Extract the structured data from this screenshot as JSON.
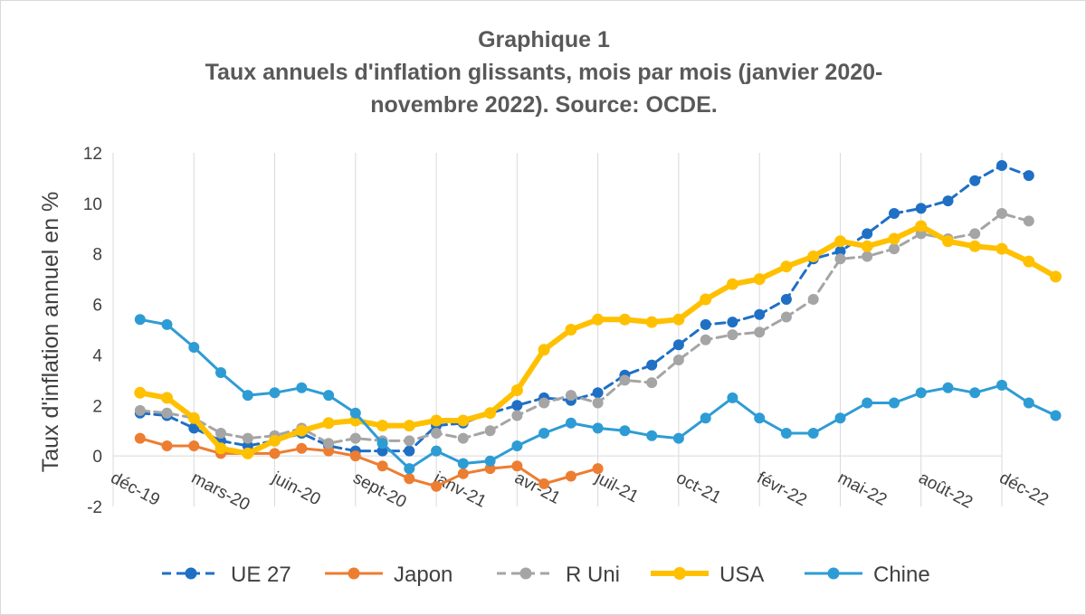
{
  "chart_data": {
    "type": "line",
    "title": [
      "Graphique 1",
      "Taux annuels d'inflation glissants, mois par mois (janvier 2020-",
      "novembre 2022). Source: OCDE."
    ],
    "xlabel": "",
    "ylabel": "Taux d'inflation annuel en %",
    "ylim": [
      -2,
      12
    ],
    "yticks": [
      -2,
      0,
      2,
      4,
      6,
      8,
      10,
      12
    ],
    "x_tick_labels": [
      "déc-19",
      "mars-20",
      "juin-20",
      "sept-20",
      "janv-21",
      "avr-21",
      "juil-21",
      "oct-21",
      "févr-22",
      "mai-22",
      "août-22",
      "déc-22"
    ],
    "x_tick_months": [
      0,
      3,
      6,
      9,
      12,
      15,
      18,
      21,
      24,
      27,
      30,
      33
    ],
    "x_range": [
      0,
      33
    ],
    "grid": "vertical",
    "legend_position": "bottom",
    "series": [
      {
        "name": "UE 27",
        "color": "#1f6fc5",
        "style": "dashed",
        "start_month": 1,
        "values": [
          1.7,
          1.6,
          1.1,
          0.6,
          0.4,
          0.6,
          0.9,
          0.4,
          0.2,
          0.2,
          0.2,
          1.2,
          1.3,
          1.7,
          2.0,
          2.3,
          2.2,
          2.5,
          3.2,
          3.6,
          4.4,
          5.2,
          5.3,
          5.6,
          6.2,
          7.8,
          8.1,
          8.8,
          9.6,
          9.8,
          10.1,
          10.9,
          11.5,
          11.1
        ]
      },
      {
        "name": "Japon",
        "color": "#ed7d31",
        "style": "solid",
        "start_month": 1,
        "values": [
          0.7,
          0.4,
          0.4,
          0.1,
          0.1,
          0.1,
          0.3,
          0.2,
          0.0,
          -0.4,
          -0.9,
          -1.2,
          -0.7,
          -0.5,
          -0.4,
          -1.1,
          -0.8,
          -0.5
        ]
      },
      {
        "name": "R Uni",
        "color": "#a5a5a5",
        "style": "dashed",
        "start_month": 1,
        "values": [
          1.8,
          1.7,
          1.5,
          0.9,
          0.7,
          0.8,
          1.1,
          0.5,
          0.7,
          0.6,
          0.6,
          0.9,
          0.7,
          1.0,
          1.6,
          2.1,
          2.4,
          2.1,
          3.0,
          2.9,
          3.8,
          4.6,
          4.8,
          4.9,
          5.5,
          6.2,
          7.8,
          7.9,
          8.2,
          8.8,
          8.6,
          8.8,
          9.6,
          9.3
        ]
      },
      {
        "name": "USA",
        "color": "#ffc000",
        "style": "solid",
        "start_month": 1,
        "values": [
          2.5,
          2.3,
          1.5,
          0.3,
          0.1,
          0.6,
          1.0,
          1.3,
          1.4,
          1.2,
          1.2,
          1.4,
          1.4,
          1.7,
          2.6,
          4.2,
          5.0,
          5.4,
          5.4,
          5.3,
          5.4,
          6.2,
          6.8,
          7.0,
          7.5,
          7.9,
          8.5,
          8.3,
          8.6,
          9.1,
          8.5,
          8.3,
          8.2,
          7.7,
          7.1
        ]
      },
      {
        "name": "Chine",
        "color": "#2e9cd4",
        "style": "solid",
        "start_month": 1,
        "values": [
          5.4,
          5.2,
          4.3,
          3.3,
          2.4,
          2.5,
          2.7,
          2.4,
          1.7,
          0.5,
          -0.5,
          0.2,
          -0.3,
          -0.2,
          0.4,
          0.9,
          1.3,
          1.1,
          1.0,
          0.8,
          0.7,
          1.5,
          2.3,
          1.5,
          0.9,
          0.9,
          1.5,
          2.1,
          2.1,
          2.5,
          2.7,
          2.5,
          2.8,
          2.1,
          1.6
        ]
      }
    ]
  }
}
